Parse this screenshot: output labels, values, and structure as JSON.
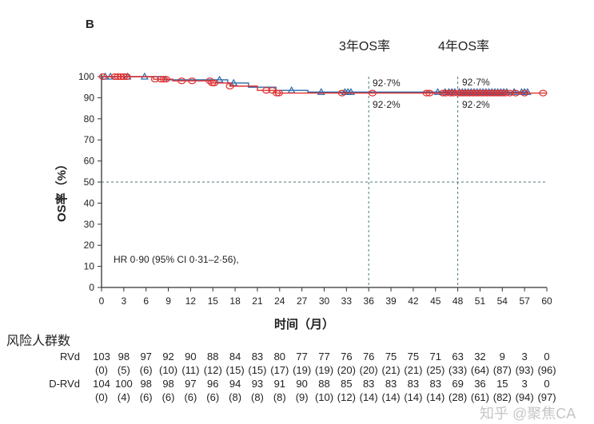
{
  "chart_data": {
    "type": "line",
    "panel_label": "B",
    "xlabel": "时间（月）",
    "ylabel": "OS率（%）",
    "xlim": [
      0,
      60
    ],
    "ylim": [
      0,
      100
    ],
    "xticks": [
      0,
      3,
      6,
      9,
      12,
      15,
      18,
      21,
      24,
      27,
      30,
      33,
      36,
      39,
      42,
      45,
      48,
      51,
      54,
      57,
      60
    ],
    "yticks": [
      0,
      10,
      20,
      30,
      40,
      50,
      60,
      70,
      80,
      90,
      100
    ],
    "reference_lines": {
      "horizontal": [
        50
      ],
      "vertical": [
        36,
        48
      ]
    },
    "annotations": {
      "year3": "3年OS率",
      "year4": "4年OS率",
      "rvd_val": "92·7%",
      "drvd_val": "92·2%",
      "hr": "HR 0·90 (95% CI 0·31–2·56),"
    },
    "series": [
      {
        "name": "RVd",
        "color": "#2a6aa8",
        "marker": "triangle",
        "steps": [
          [
            0,
            100
          ],
          [
            8.6,
            98.5
          ],
          [
            17,
            97
          ],
          [
            19.8,
            95
          ],
          [
            23.5,
            93.5
          ],
          [
            27.8,
            92.7
          ],
          [
            57.5,
            92.7
          ]
        ],
        "censored": [
          0.5,
          1.2,
          3.5,
          5.8,
          15.9,
          17.8,
          25.6,
          29.6,
          32.8,
          33.2,
          33.6,
          45.3,
          46.3,
          46.8,
          47.2,
          47.6,
          48.2,
          48.6,
          49,
          49.4,
          49.8,
          50.2,
          50.6,
          51,
          51.4,
          51.8,
          52.2,
          52.6,
          53,
          53.4,
          53.8,
          54.2,
          54.6,
          55.6,
          56.6,
          57,
          57.4
        ]
      },
      {
        "name": "D-RVd",
        "color": "#e03030",
        "marker": "circle",
        "steps": [
          [
            0,
            100
          ],
          [
            7,
            98.8
          ],
          [
            9.6,
            98
          ],
          [
            14.7,
            97
          ],
          [
            17.3,
            95.5
          ],
          [
            21,
            93.5
          ],
          [
            23.5,
            92.2
          ],
          [
            60,
            92.2
          ]
        ],
        "censored": [
          0.2,
          1.8,
          2.2,
          2.6,
          3,
          3.4,
          7.2,
          8,
          8.4,
          8.7,
          10.8,
          12.2,
          14.6,
          14.9,
          15.2,
          17.3,
          22.2,
          23,
          23.6,
          23.9,
          32.4,
          36.5,
          43.8,
          44.2,
          46,
          46.4,
          47,
          47.4,
          48,
          48.4,
          48.8,
          49.2,
          49.6,
          50,
          50.4,
          50.8,
          51.2,
          51.6,
          52,
          52.4,
          52.8,
          53.2,
          53.6,
          54,
          54.4,
          55,
          55.8,
          57,
          59.5
        ]
      }
    ]
  },
  "risk_table": {
    "title": "风险人群数",
    "rows": [
      {
        "label": "RVd",
        "n": [
          "103",
          "98",
          "97",
          "92",
          "90",
          "88",
          "84",
          "83",
          "80",
          "77",
          "77",
          "76",
          "76",
          "75",
          "75",
          "71",
          "63",
          "32",
          "9",
          "3",
          "0"
        ],
        "events": [
          "(0)",
          "(5)",
          "(6)",
          "(10)",
          "(11)",
          "(12)",
          "(15)",
          "(15)",
          "(17)",
          "(19)",
          "(19)",
          "(20)",
          "(20)",
          "(21)",
          "(21)",
          "(25)",
          "(33)",
          "(64)",
          "(87)",
          "(93)",
          "(96)"
        ]
      },
      {
        "label": "D-RVd",
        "n": [
          "104",
          "100",
          "98",
          "98",
          "97",
          "96",
          "94",
          "93",
          "91",
          "90",
          "88",
          "85",
          "83",
          "83",
          "83",
          "83",
          "69",
          "36",
          "15",
          "3",
          "0"
        ],
        "events": [
          "(0)",
          "(4)",
          "(6)",
          "(6)",
          "(6)",
          "(6)",
          "(8)",
          "(8)",
          "(8)",
          "(9)",
          "(10)",
          "(12)",
          "(14)",
          "(14)",
          "(14)",
          "(14)",
          "(28)",
          "(61)",
          "(82)",
          "(94)",
          "(97)"
        ]
      }
    ]
  },
  "watermark": "知乎 @聚焦CA"
}
